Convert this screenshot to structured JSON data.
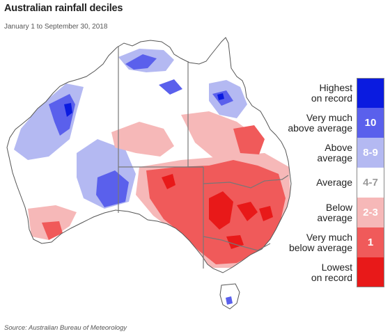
{
  "title": "Australian rainfall deciles",
  "subtitle": "January 1 to September 30, 2018",
  "source": "Source: Australian Bureau of Meteorology",
  "legend": [
    {
      "label_line1": "Highest",
      "label_line2": "on record",
      "code": "",
      "color": "#0a1be0",
      "text_color": "#ffffff"
    },
    {
      "label_line1": "Very much",
      "label_line2": "above average",
      "code": "10",
      "color": "#5a60ec",
      "text_color": "#ffffff"
    },
    {
      "label_line1": "Above",
      "label_line2": "average",
      "code": "8-9",
      "color": "#b4b9f2",
      "text_color": "#ffffff"
    },
    {
      "label_line1": "Average",
      "label_line2": "",
      "code": "4-7",
      "color": "#ffffff",
      "text_color": "#9a9a9a"
    },
    {
      "label_line1": "Below",
      "label_line2": "average",
      "code": "2-3",
      "color": "#f6b8b8",
      "text_color": "#ffffff"
    },
    {
      "label_line1": "Very much",
      "label_line2": "below average",
      "code": "1",
      "color": "#f05a5a",
      "text_color": "#ffffff"
    },
    {
      "label_line1": "Lowest",
      "label_line2": "on record",
      "code": "",
      "color": "#e81919",
      "text_color": "#ffffff"
    }
  ]
}
